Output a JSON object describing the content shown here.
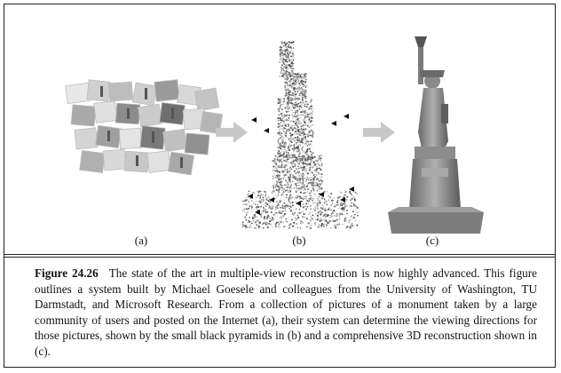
{
  "figure": {
    "panels": [
      {
        "id": "a",
        "label": "(a)"
      },
      {
        "id": "b",
        "label": "(b)"
      },
      {
        "id": "c",
        "label": "(c)"
      }
    ]
  },
  "caption": {
    "number": "Figure 24.26",
    "text": "The state of the art in multiple-view reconstruction is now highly advanced. This figure outlines a system built by Michael Goesele and colleagues from the University of Washington, TU Darmstadt, and Microsoft Research. From a collection of pictures of a monument taken by a large community of users and posted on the Internet (a), their system can determine the viewing directions for those pictures, shown by the small black pyramids in (b) and a comprehensive 3D reconstruction shown in (c)."
  },
  "colors": {
    "arrow": "#c8c8c8",
    "border": "#222222"
  }
}
